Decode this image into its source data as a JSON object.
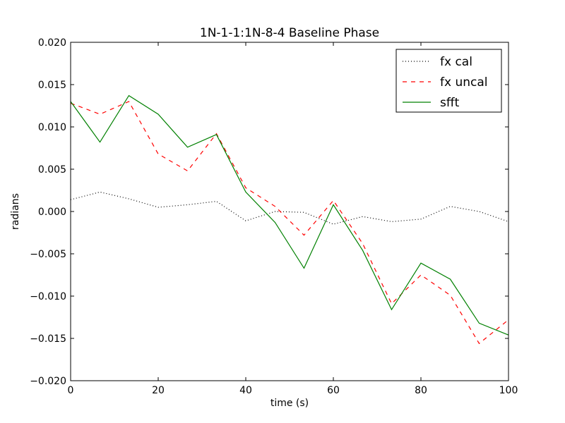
{
  "chart_data": {
    "type": "line",
    "title": "1N-1-1:1N-8-4 Baseline Phase",
    "xlabel": "time (s)",
    "ylabel": "radians",
    "xlim": [
      0,
      100
    ],
    "ylim": [
      -0.02,
      0.02
    ],
    "xticks": [
      0,
      20,
      40,
      60,
      80,
      100
    ],
    "xtick_labels": [
      "0",
      "20",
      "40",
      "60",
      "80",
      "100"
    ],
    "yticks": [
      -0.02,
      -0.015,
      -0.01,
      -0.005,
      0.0,
      0.005,
      0.01,
      0.015,
      0.02
    ],
    "ytick_labels": [
      "−0.020",
      "−0.015",
      "−0.010",
      "−0.005",
      "0.000",
      "0.005",
      "0.010",
      "0.015",
      "0.020"
    ],
    "grid": false,
    "legend_position": "top-right",
    "x": [
      0,
      6.7,
      13.3,
      20,
      26.7,
      33.3,
      40,
      46.7,
      53.3,
      60,
      66.7,
      73.3,
      80,
      86.7,
      93.3,
      100
    ],
    "series": [
      {
        "name": "fx cal",
        "style": "dotted",
        "color": "#000000",
        "values": [
          0.0014,
          0.0023,
          0.0015,
          0.0005,
          0.0008,
          0.0012,
          -0.0011,
          0.0,
          -0.0001,
          -0.0015,
          -0.0006,
          -0.0012,
          -0.0009,
          0.0006,
          0.0,
          -0.0012
        ]
      },
      {
        "name": "fx uncal",
        "style": "dashed",
        "color": "#ff0000",
        "values": [
          0.0128,
          0.0115,
          0.013,
          0.0068,
          0.0048,
          0.0092,
          0.0028,
          0.0006,
          -0.0028,
          0.0013,
          -0.0038,
          -0.0109,
          -0.0075,
          -0.0099,
          -0.0156,
          -0.0128
        ]
      },
      {
        "name": "sfft",
        "style": "solid",
        "color": "#008000",
        "values": [
          0.013,
          0.0082,
          0.0137,
          0.0115,
          0.0076,
          0.0091,
          0.0023,
          -0.0013,
          -0.0067,
          0.0008,
          -0.0046,
          -0.0116,
          -0.0061,
          -0.008,
          -0.0132,
          -0.0146
        ]
      }
    ]
  }
}
